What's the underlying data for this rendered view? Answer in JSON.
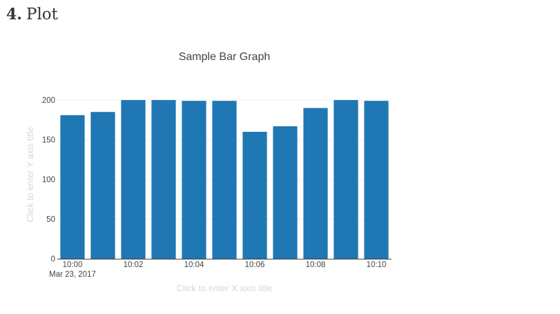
{
  "heading": {
    "number": "4.",
    "title": "Plot"
  },
  "chart_data": {
    "type": "bar",
    "title": "Sample Bar Graph",
    "xlabel_placeholder": "Click to enter X axis title",
    "ylabel_placeholder": "Click to enter Y axis title",
    "date_label": "Mar 23, 2017",
    "categories": [
      "10:00",
      "10:01",
      "10:02",
      "10:03",
      "10:04",
      "10:05",
      "10:06",
      "10:07",
      "10:08",
      "10:09",
      "10:10"
    ],
    "x_tick_labels": [
      "10:00",
      "10:02",
      "10:04",
      "10:06",
      "10:08",
      "10:10"
    ],
    "values": [
      181,
      185,
      200,
      200,
      199,
      199,
      160,
      167,
      190,
      200,
      199
    ],
    "y_ticks": [
      0,
      50,
      100,
      150,
      200
    ],
    "ylim": [
      0,
      200
    ],
    "grid": true,
    "bar_color": "#1f77b4"
  }
}
